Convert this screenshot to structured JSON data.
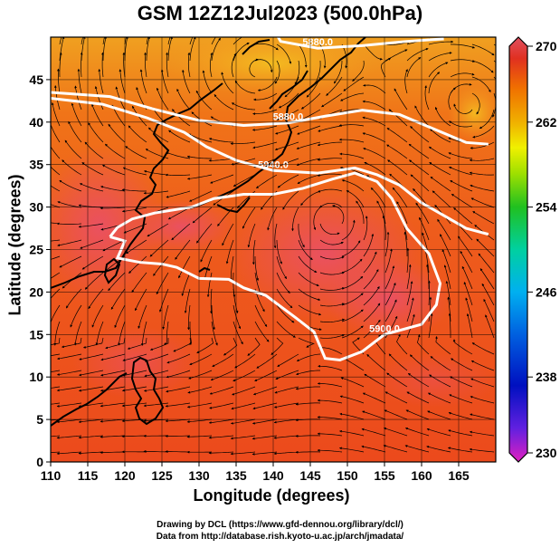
{
  "title": "GSM 12Z12Jul2023 (500.0hPa)",
  "chart_data": {
    "type": "heatmap",
    "title": "GSM 12Z12Jul2023 (500.0hPa)",
    "xlabel": "Longitude (degrees)",
    "ylabel": "Latitude  (degrees)",
    "xlim": [
      110,
      170
    ],
    "ylim": [
      0,
      50
    ],
    "x_ticks": [
      "110",
      "115",
      "120",
      "125",
      "130",
      "135",
      "140",
      "145",
      "150",
      "155",
      "160",
      "165"
    ],
    "y_ticks": [
      "0",
      "5",
      "10",
      "15",
      "20",
      "25",
      "30",
      "35",
      "40",
      "45"
    ],
    "colorbar": {
      "min": 230,
      "max": 270,
      "tick_labels": [
        "270",
        "262",
        "254",
        "246",
        "238",
        "230"
      ],
      "colors": [
        "#e020c0",
        "#6020e0",
        "#0010c0",
        "#0060e0",
        "#00b0f0",
        "#00d0a0",
        "#20c020",
        "#a0e000",
        "#f0f000",
        "#f0b000",
        "#f07000",
        "#e03020",
        "#e05060"
      ]
    },
    "contours": [
      {
        "label": "5880.0",
        "points": [
          [
            110,
            43.5
          ],
          [
            118,
            43
          ],
          [
            124,
            41.5
          ],
          [
            130,
            40.2
          ],
          [
            136,
            39.6
          ],
          [
            142,
            39.9
          ],
          [
            147,
            40.7
          ],
          [
            152,
            41.4
          ],
          [
            157,
            40.9
          ],
          [
            163,
            38.7
          ],
          [
            166,
            37.6
          ],
          [
            169,
            37.4
          ]
        ]
      },
      {
        "label": "5940.0",
        "points": [
          [
            110,
            42.8
          ],
          [
            117,
            42.1
          ],
          [
            123,
            40.5
          ],
          [
            128,
            38.8
          ],
          [
            131,
            37.1
          ],
          [
            135,
            35.5
          ],
          [
            140,
            34.3
          ],
          [
            146,
            34.0
          ],
          [
            151,
            34.6
          ],
          [
            154,
            33.8
          ],
          [
            157,
            32.6
          ],
          [
            160,
            30.5
          ],
          [
            163,
            29.0
          ],
          [
            166,
            27.5
          ],
          [
            169,
            26.8
          ]
        ]
      },
      {
        "label": "5880.0",
        "points": [
          [
            140,
            51
          ],
          [
            141,
            49.5
          ],
          [
            146,
            48.7
          ],
          [
            152,
            49.0
          ],
          [
            158,
            49.5
          ],
          [
            163,
            49.8
          ]
        ]
      },
      {
        "label": "5900.0",
        "points": [
          [
            118,
            26.5
          ],
          [
            120,
            26
          ],
          [
            119,
            24
          ],
          [
            122,
            23.5
          ],
          [
            125,
            23.3
          ],
          [
            127,
            22.9
          ],
          [
            130,
            21.6
          ],
          [
            134,
            21.5
          ],
          [
            136,
            20.5
          ],
          [
            139,
            19.6
          ],
          [
            143,
            17
          ],
          [
            145.5,
            15.3
          ],
          [
            147,
            12.2
          ],
          [
            149,
            12
          ],
          [
            152,
            13
          ],
          [
            155,
            15
          ],
          [
            160,
            16.2
          ],
          [
            162,
            18.5
          ],
          [
            162.5,
            21
          ],
          [
            161,
            24.5
          ],
          [
            158,
            27.5
          ],
          [
            156,
            31
          ],
          [
            154,
            33
          ],
          [
            151,
            34
          ],
          [
            148,
            33.3
          ],
          [
            144,
            32.2
          ],
          [
            140,
            31.5
          ],
          [
            136,
            31.5
          ],
          [
            132,
            31
          ],
          [
            129,
            30
          ],
          [
            124,
            29.3
          ],
          [
            121,
            28.6
          ],
          [
            119,
            27.6
          ],
          [
            118,
            26.5
          ]
        ]
      }
    ],
    "streamlines": "500hPa wind streamlines with arrowheads",
    "legend": "colorbar-right"
  },
  "credits": {
    "line1": "Drawing by DCL (https://www.gfd-dennou.org/library/dcl/)",
    "line2": "Data from http://database.rish.kyoto-u.ac.jp/arch/jmadata/"
  },
  "colors": {
    "background": "#ffffff",
    "field_base": "#f06418",
    "contour": "#ffffff",
    "coast": "#000000"
  }
}
